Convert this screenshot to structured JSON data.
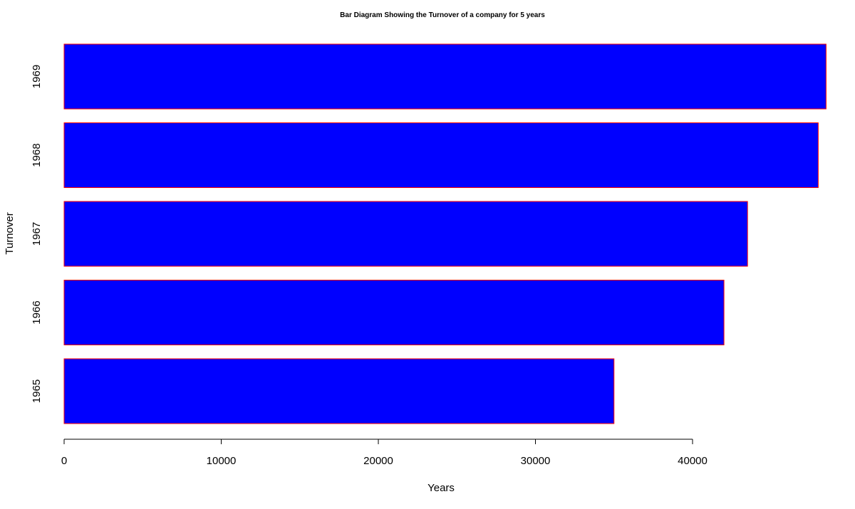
{
  "chart_data": {
    "type": "bar",
    "orientation": "horizontal",
    "title": "Bar Diagram Showing the Turnover of a company for 5 years",
    "xlabel": "Years",
    "ylabel": "Turnover",
    "categories": [
      "1965",
      "1966",
      "1967",
      "1968",
      "1969"
    ],
    "values": [
      35000,
      42000,
      43500,
      48000,
      48500
    ],
    "xticks": [
      0,
      10000,
      20000,
      30000,
      40000
    ],
    "xtick_labels": [
      "0",
      "10000",
      "20000",
      "30000",
      "40000"
    ],
    "xlim": [
      0,
      48500
    ],
    "grid": false,
    "bar_fill_color": "#0000ff",
    "bar_border_color": "#ff0000"
  }
}
